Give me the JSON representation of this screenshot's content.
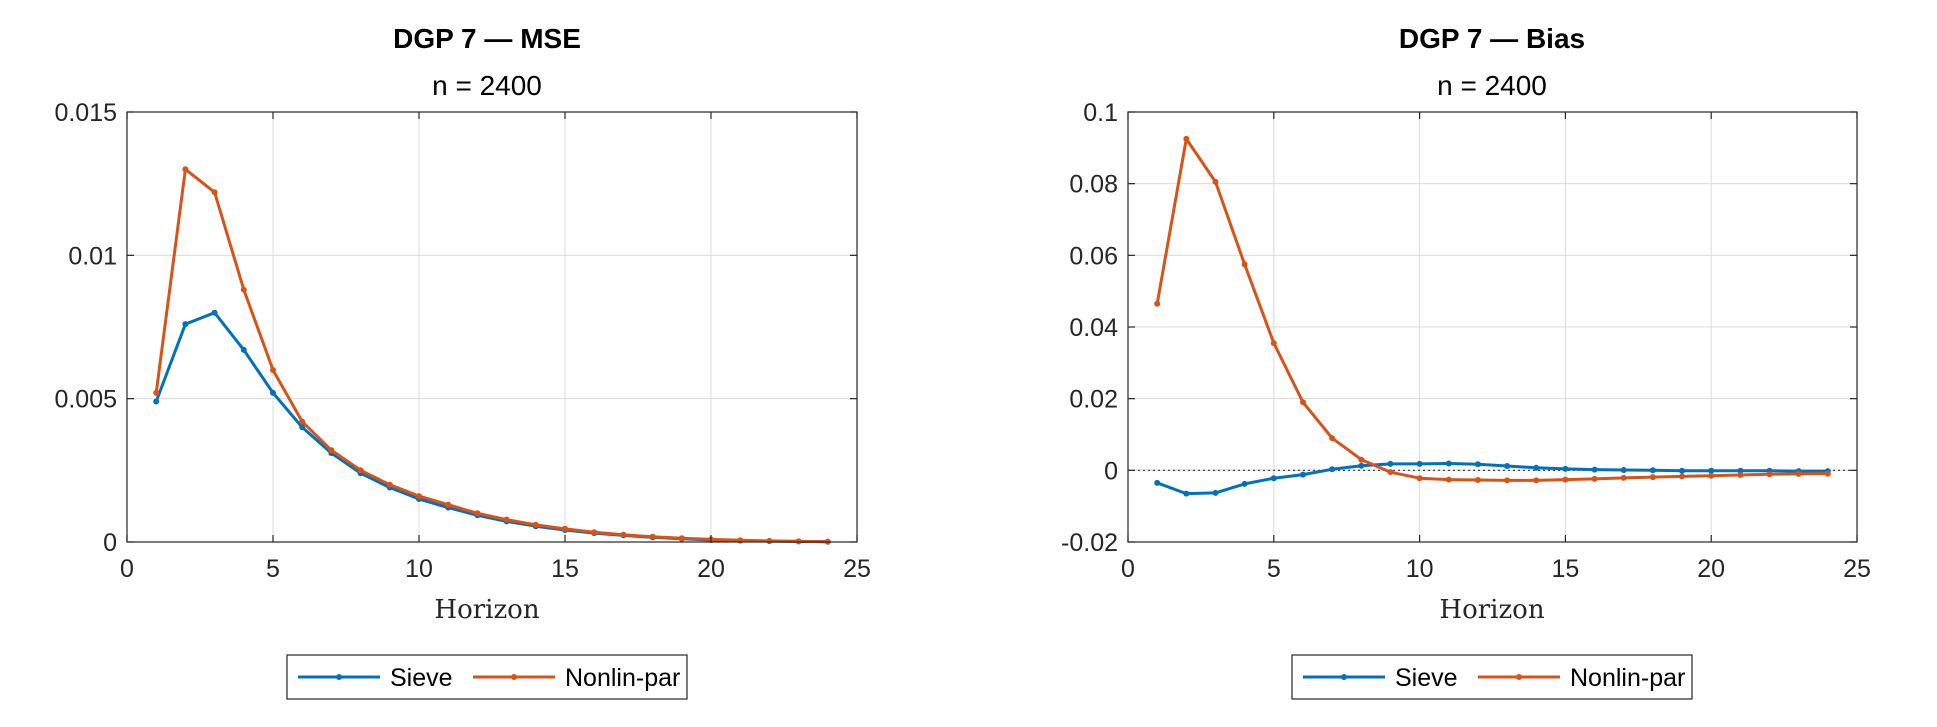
{
  "colors": {
    "sieve": "#0072BD",
    "nonlin": "#D95319",
    "grid": "#dcdcdc",
    "axis": "#262626",
    "zero_line": "#333333"
  },
  "legend": {
    "placement": "bottom-center-outside"
  },
  "chart_data": [
    {
      "type": "line",
      "title": "DGP 7  —  MSE",
      "subtitle": "n = 2400",
      "xlabel": "Horizon",
      "ylabel": "",
      "xlim": [
        0,
        25
      ],
      "ylim": [
        0,
        0.015
      ],
      "xticks": [
        0,
        5,
        10,
        15,
        20,
        25
      ],
      "xtick_labels": [
        "0",
        "5",
        "10",
        "15",
        "20",
        "25"
      ],
      "yticks": [
        0,
        0.005,
        0.01,
        0.015
      ],
      "ytick_labels": [
        "0",
        "0.005",
        "0.01",
        "0.015"
      ],
      "grid": true,
      "zero_line": false,
      "x": [
        1,
        2,
        3,
        4,
        5,
        6,
        7,
        8,
        9,
        10,
        11,
        12,
        13,
        14,
        15,
        16,
        17,
        18,
        19,
        20,
        21,
        22,
        23,
        24
      ],
      "series": [
        {
          "name": "Sieve",
          "color_key": "sieve",
          "values": [
            0.0049,
            0.0076,
            0.008,
            0.0067,
            0.0052,
            0.004,
            0.0031,
            0.0024,
            0.0019,
            0.0015,
            0.0012,
            0.00093,
            0.00072,
            0.00055,
            0.00042,
            0.00031,
            0.00023,
            0.00016,
            0.00011,
            7e-05,
            5e-05,
            3e-05,
            2e-05,
            1e-05
          ]
        },
        {
          "name": "Nonlin-par",
          "color_key": "nonlin",
          "values": [
            0.0052,
            0.013,
            0.0122,
            0.0088,
            0.006,
            0.0042,
            0.0032,
            0.0025,
            0.002,
            0.0016,
            0.0013,
            0.001,
            0.00078,
            0.0006,
            0.00046,
            0.00034,
            0.00025,
            0.00018,
            0.00013,
            9e-05,
            6e-05,
            4e-05,
            2e-05,
            1e-05
          ]
        }
      ]
    },
    {
      "type": "line",
      "title": "DGP 7  —  Bias",
      "subtitle": "n = 2400",
      "xlabel": "Horizon",
      "ylabel": "",
      "xlim": [
        0,
        25
      ],
      "ylim": [
        -0.02,
        0.1
      ],
      "xticks": [
        0,
        5,
        10,
        15,
        20,
        25
      ],
      "xtick_labels": [
        "0",
        "5",
        "10",
        "15",
        "20",
        "25"
      ],
      "yticks": [
        -0.02,
        0,
        0.02,
        0.04,
        0.06,
        0.08,
        0.1
      ],
      "ytick_labels": [
        "-0.02",
        "0",
        "0.02",
        "0.04",
        "0.06",
        "0.08",
        "0.1"
      ],
      "grid": true,
      "zero_line": true,
      "x": [
        1,
        2,
        3,
        4,
        5,
        6,
        7,
        8,
        9,
        10,
        11,
        12,
        13,
        14,
        15,
        16,
        17,
        18,
        19,
        20,
        21,
        22,
        23,
        24
      ],
      "series": [
        {
          "name": "Sieve",
          "color_key": "sieve",
          "values": [
            -0.0035,
            -0.0065,
            -0.0063,
            -0.0038,
            -0.0022,
            -0.0012,
            0.0003,
            0.0013,
            0.0018,
            0.0018,
            0.0019,
            0.0017,
            0.0012,
            0.0007,
            0.0004,
            0.0002,
            0.0001,
            0.0,
            -0.0001,
            -0.0001,
            -0.0001,
            -0.0001,
            -0.0002,
            -0.0002
          ]
        },
        {
          "name": "Nonlin-par",
          "color_key": "nonlin",
          "values": [
            0.0465,
            0.0925,
            0.0805,
            0.0575,
            0.0355,
            0.019,
            0.009,
            0.003,
            -0.0005,
            -0.0022,
            -0.0026,
            -0.0027,
            -0.0028,
            -0.0028,
            -0.0026,
            -0.0024,
            -0.0021,
            -0.0019,
            -0.0017,
            -0.0015,
            -0.0013,
            -0.0011,
            -0.001,
            -0.0009
          ]
        }
      ]
    }
  ]
}
